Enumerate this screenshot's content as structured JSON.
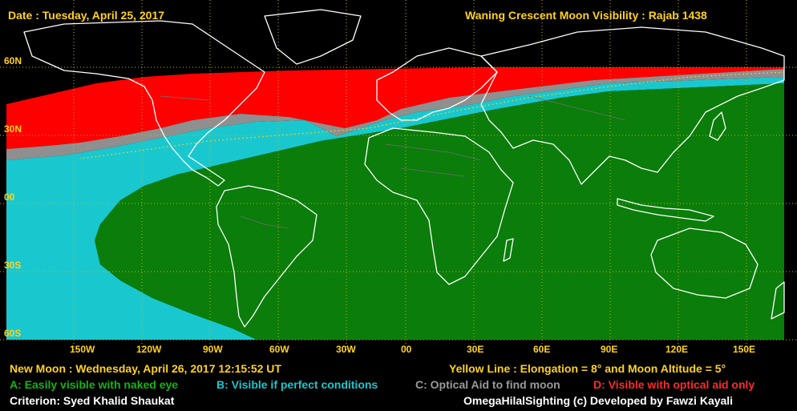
{
  "header": {
    "date_label": "Date : Tuesday, April 25, 2017",
    "title": "Waning Crescent Moon Visibility : Rajab 1438"
  },
  "map": {
    "lat_labels": [
      "60N",
      "30N",
      "00",
      "30S",
      "60S"
    ],
    "lon_labels": [
      "150W",
      "120W",
      "90W",
      "60W",
      "30W",
      "00",
      "30E",
      "60E",
      "90E",
      "120E",
      "150E"
    ],
    "zones": {
      "A": "#0a7d0a",
      "B": "#19c8cf",
      "C": "#8f8f8f",
      "D": "#ff0000"
    },
    "grid_color": "#c8b400",
    "coast_color": "#ffffff"
  },
  "footer": {
    "new_moon": "New Moon : Wednesday, April 26, 2017  12:15:52  UT",
    "yellow_line": "Yellow Line : Elongation = 8° and Moon Altitude = 5°",
    "legend": {
      "a": "A: Easily visible with naked eye",
      "b": "B: Visible if perfect conditions",
      "c": "C: Optical Aid to find moon",
      "d": "D: Visible with optical aid only"
    },
    "criterion": "Criterion: Syed Khalid Shaukat",
    "credit": "OmegaHilalSighting  (c)  Developed by Fawzi Kayali"
  }
}
